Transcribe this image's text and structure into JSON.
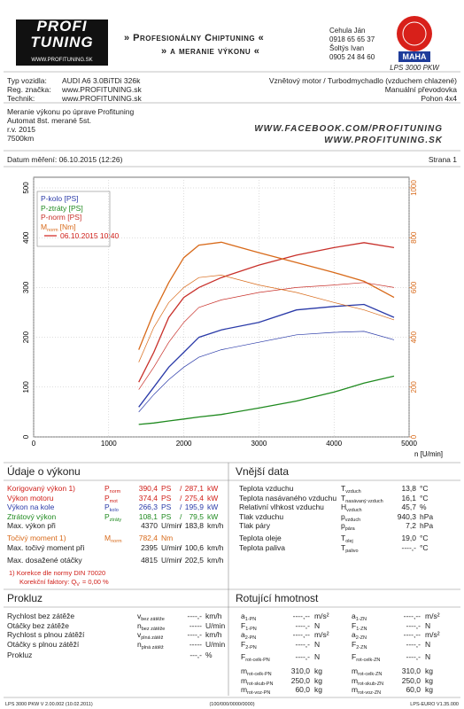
{
  "header": {
    "logo_top": "PROFI",
    "logo_bottom": "TUNING",
    "logo_url": "WWW.PROFITUNING.SK",
    "slogan1": "» Profesionálny Chiptuning «",
    "slogan2": "» a meranie výkonu «",
    "contacts": [
      "Cehula Ján",
      "0918 65 65 37",
      "Šoltýs Ivan",
      "0905 24 84 60"
    ],
    "brand": "MAHA",
    "device": "LPS 3000 PKW"
  },
  "vehicle": {
    "rows": [
      {
        "label": "Typ vozidla:",
        "value": "AUDI A6 3.0BiTDi 326k"
      },
      {
        "label": "Reg. značka:",
        "value": "www.PROFITUNING.sk"
      },
      {
        "label": "Technik:",
        "value": "www.PROFITUNING.sk"
      }
    ],
    "right": [
      "Vznětový motor / Turbodmychadlo (vzduchem chlazené)",
      "Manuální převodovka",
      "Pohon 4x4"
    ]
  },
  "notes": [
    "Meranie výkonu po úprave Profituning",
    "Automat 8st. merané 5st.",
    "r.v. 2015",
    "7500km"
  ],
  "links": [
    "WWW.FACEBOOK.COM/PROFITUNING",
    "WWW.PROFITUNING.SK"
  ],
  "date": "Datum měření: 06.10.2015 (12:26)",
  "page": "Strana 1",
  "chart": {
    "type": "line",
    "x_label": "n [U/min]",
    "run_label": "06.10.2015 10:40",
    "run_color": "#d0201a",
    "x": [
      1400,
      1600,
      1800,
      2000,
      2200,
      2500,
      3000,
      3500,
      4000,
      4400,
      4800
    ],
    "xlim": [
      0,
      5000
    ],
    "xticks": [
      0,
      1000,
      2000,
      3000,
      4000,
      5000
    ],
    "ylim": [
      0,
      500
    ],
    "yticks": [
      0,
      100,
      200,
      300,
      400,
      500
    ],
    "y2lim": [
      0,
      1000
    ],
    "y2ticks": [
      0,
      200,
      400,
      600,
      800,
      1000
    ],
    "y2color": "#d86a1a",
    "grid": true,
    "series": [
      {
        "name": "P-kolo [PS]",
        "color": "#2a3aa8",
        "line_width": 1.3,
        "values": [
          60,
          100,
          140,
          170,
          200,
          215,
          230,
          255,
          262,
          266,
          240
        ]
      },
      {
        "name": "P-ztráty [PS]",
        "color": "#1f8a1f",
        "line_width": 1.3,
        "values": [
          25,
          28,
          32,
          36,
          40,
          45,
          58,
          72,
          90,
          108,
          122
        ]
      },
      {
        "name": "P-norm [PS]",
        "color": "#c8302a",
        "line_width": 1.3,
        "values": [
          110,
          170,
          240,
          280,
          300,
          320,
          345,
          365,
          380,
          390,
          380
        ]
      },
      {
        "name": "M",
        "name_sub": "norm",
        "name_unit": "[Nm]",
        "color": "#d86a1a",
        "line_width": 1.3,
        "axis": "y2",
        "values": [
          350,
          500,
          620,
          720,
          770,
          782,
          740,
          700,
          660,
          625,
          560
        ]
      },
      {
        "color": "#2a3aa8",
        "line_width": 0.7,
        "values": [
          50,
          85,
          115,
          140,
          160,
          175,
          190,
          205,
          210,
          212,
          195
        ]
      },
      {
        "color": "#c8302a",
        "line_width": 0.7,
        "values": [
          95,
          140,
          190,
          230,
          260,
          275,
          290,
          300,
          305,
          310,
          300
        ]
      },
      {
        "color": "#d86a1a",
        "line_width": 0.7,
        "axis": "y2",
        "values": [
          300,
          440,
          540,
          600,
          640,
          650,
          610,
          580,
          540,
          510,
          470
        ]
      }
    ]
  },
  "performance": {
    "title": "Údaje o výkonu",
    "groups": [
      [
        {
          "color": "#d0201a",
          "label": "Korigovaný výkon 1)",
          "sym": {
            "m": "P",
            "s": "norm"
          },
          "v1": "390,4",
          "u1": "PS",
          "sep": "/",
          "v2": "287,1",
          "u2": "kW"
        },
        {
          "color": "#d0201a",
          "label": "Výkon motoru",
          "sym": {
            "m": "P",
            "s": "mot"
          },
          "v1": "374,4",
          "u1": "PS",
          "sep": "/",
          "v2": "275,4",
          "u2": "kW"
        },
        {
          "color": "#2a3aa8",
          "label": "Výkon na kole",
          "sym": {
            "m": "P",
            "s": "kolo"
          },
          "v1": "266,3",
          "u1": "PS",
          "sep": "/",
          "v2": "195,9",
          "u2": "kW"
        },
        {
          "color": "#1f8a1f",
          "label": "Ztrátový výkon",
          "sym": {
            "m": "P",
            "s": "ztráty"
          },
          "v1": "108,1",
          "u1": "PS",
          "sep": "/",
          "v2": "79,5",
          "u2": "kW"
        },
        {
          "color": "#222222",
          "label": "Max. výkon při",
          "v1": "4370",
          "u1": "U/min",
          "sep": "/",
          "v2": "183,8",
          "u2": "km/h"
        }
      ],
      [
        {
          "color": "#d86a1a",
          "label": "Točivý moment 1)",
          "sym": {
            "m": "M",
            "s": "norm"
          },
          "v1": "782,4",
          "u1": "Nm"
        },
        {
          "color": "#222222",
          "label": "Max. točivý moment při",
          "v1": "2395",
          "u1": "U/min",
          "sep": "/",
          "v2": "100,6",
          "u2": "km/h"
        }
      ],
      [
        {
          "color": "#222222",
          "label": "Max. dosažené otáčky",
          "v1": "4815",
          "u1": "U/min",
          "sep": "/",
          "v2": "202,5",
          "u2": "km/h"
        }
      ]
    ],
    "correction": "1) Korekce dle normy DIN 70020",
    "factor": {
      "m": "Korekční faktory: Q",
      "s": "V",
      "rest": "= 0,00 %"
    }
  },
  "ambient": {
    "title": "Vnější data",
    "groups": [
      [
        {
          "label": "Teplota vzduchu",
          "sym": {
            "m": "T",
            "s": "vzduch"
          },
          "v1": "13,8",
          "u1": "°C"
        },
        {
          "label": "Teplota nasávaného vzduchu",
          "sym": {
            "m": "T",
            "s": "nasávaný vzduch"
          },
          "v1": "16,1",
          "u1": "°C"
        },
        {
          "label": "Relativní vlhkost vzduchu",
          "sym": {
            "m": "H",
            "s": "vzduch"
          },
          "v1": "45,7",
          "u1": "%"
        },
        {
          "label": "Tlak vzduchu",
          "sym": {
            "m": "p",
            "s": "vzduch"
          },
          "v1": "940,3",
          "u1": "hPa"
        },
        {
          "label": "Tlak páry",
          "sym": {
            "m": "p",
            "s": "pára"
          },
          "v1": "7,2",
          "u1": "hPa"
        }
      ],
      [
        {
          "label": "Teplota oleje",
          "sym": {
            "m": "T",
            "s": "olej"
          },
          "v1": "19,0",
          "u1": "°C"
        },
        {
          "label": "Teplota paliva",
          "sym": {
            "m": "T",
            "s": "palivo"
          },
          "v1": "----,-",
          "u1": "°C"
        }
      ]
    ]
  },
  "slip": {
    "title": "Prokluz",
    "groups": [
      [
        {
          "label": "Rychlost bez zátěže",
          "sym": {
            "m": "v",
            "s": "bez zátěže"
          },
          "v1": "----,-",
          "u1": "km/h"
        },
        {
          "label": "Otáčky bez zátěže",
          "sym": {
            "m": "n",
            "s": "bez zátěže"
          },
          "v1": "-----",
          "u1": "U/min"
        },
        {
          "label": "Rychlost s plnou zátěží",
          "sym": {
            "m": "v",
            "s": "plná zátěž"
          },
          "v1": "----,-",
          "u1": "km/h"
        },
        {
          "label": "Otáčky s plnou zátěží",
          "sym": {
            "m": "n",
            "s": "plná zátěž"
          },
          "v1": "-----",
          "u1": "U/min"
        }
      ],
      [
        {
          "label": "Prokluz",
          "v1": "---,-",
          "u1": "%"
        }
      ]
    ]
  },
  "rotating": {
    "title": "Rotující hmotnost",
    "groups": [
      [
        {
          "sym": {
            "m": "a",
            "s": "1-PN"
          },
          "v1": "----,--",
          "u1": "m/s²",
          "sym2": {
            "m": "a",
            "s": "1-ZN"
          },
          "v2": "----,--",
          "u2": "m/s²"
        },
        {
          "sym": {
            "m": "F",
            "s": "1-PN"
          },
          "v1": "----,-",
          "u1": "N",
          "sym2": {
            "m": "F",
            "s": "1-ZN"
          },
          "v2": "----,-",
          "u2": "N"
        },
        {
          "sym": {
            "m": "a",
            "s": "2-PN"
          },
          "v1": "----,--",
          "u1": "m/s²",
          "sym2": {
            "m": "a",
            "s": "2-ZN"
          },
          "v2": "----,--",
          "u2": "m/s²"
        },
        {
          "sym": {
            "m": "F",
            "s": "2-PN"
          },
          "v1": "----,-",
          "u1": "N",
          "sym2": {
            "m": "F",
            "s": "2-ZN"
          },
          "v2": "----,-",
          "u2": "N"
        }
      ],
      [
        {
          "sym": {
            "m": "F",
            "s": "rot-celk-PN"
          },
          "v1": "----,-",
          "u1": "N",
          "sym2": {
            "m": "F",
            "s": "rot-celk-ZN"
          },
          "v2": "----,-",
          "u2": "N"
        }
      ],
      [
        {
          "sym": {
            "m": "m",
            "s": "rot-celk-PN"
          },
          "v1": "310,0",
          "u1": "kg",
          "sym2": {
            "m": "m",
            "s": "rot-celk-ZN"
          },
          "v2": "310,0",
          "u2": "kg"
        },
        {
          "sym": {
            "m": "m",
            "s": "rot-skub-PN"
          },
          "v1": "250,0",
          "u1": "kg",
          "sym2": {
            "m": "m",
            "s": "rot-skub-ZN"
          },
          "v2": "250,0",
          "u2": "kg"
        },
        {
          "sym": {
            "m": "m",
            "s": "rot-voz-PN"
          },
          "v1": "60,0",
          "u1": "kg",
          "sym2": {
            "m": "m",
            "s": "rot-voz-ZN"
          },
          "v2": "60,0",
          "u2": "kg"
        }
      ]
    ]
  },
  "footer": [
    "LPS 3000 PKW V 2.00.002 (10.02.2011)",
    "(100/000/0000/0000)",
    "LPS-EURO V1.35.000"
  ]
}
